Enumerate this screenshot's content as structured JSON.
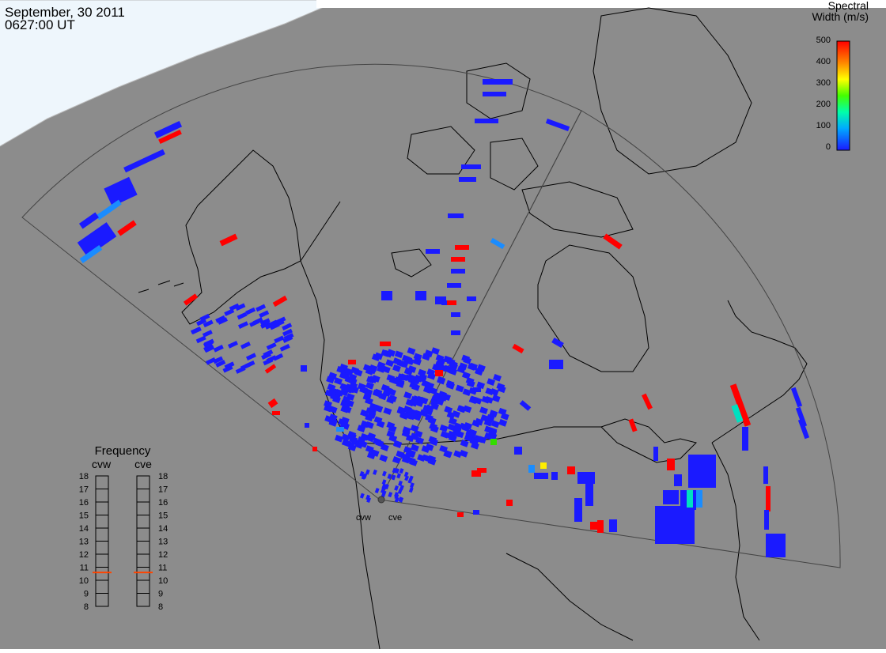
{
  "header": {
    "date": "September, 30 2011",
    "time": "0627:00 UT"
  },
  "colors": {
    "background": "#8c8c8c",
    "daylight_region": "#eef6fc",
    "coast_line": "#000000",
    "fov_outline": "#444444",
    "scatter_low": "#1a1aff",
    "scatter_high": "#ff0000"
  },
  "colorbar": {
    "title_line1": "Spectral",
    "title_line2": "Width (m/s)",
    "ticks": [
      "500",
      "400",
      "300",
      "200",
      "100",
      "0"
    ],
    "scale_max": 500
  },
  "frequency_panel": {
    "title": "Frequency",
    "radars": [
      {
        "name": "cvw",
        "frequency_mhz": 10.6
      },
      {
        "name": "cve",
        "frequency_mhz": 10.6
      }
    ],
    "scale_labels": [
      "18",
      "17",
      "16",
      "15",
      "14",
      "13",
      "12",
      "11",
      "10",
      "9",
      "8"
    ]
  },
  "radar_sites": [
    {
      "label": "cvw"
    },
    {
      "label": "cve"
    }
  ]
}
